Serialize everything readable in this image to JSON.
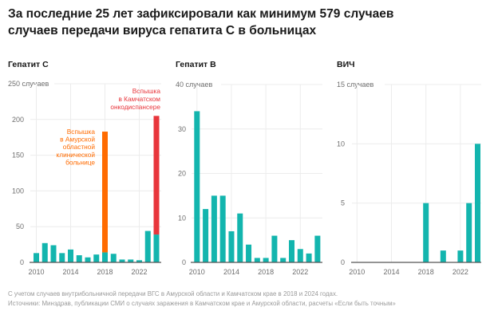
{
  "title_lines": [
    "За последние 25 лет зафиксировали как минимум 579 случаев",
    "случаев передачи вируса гепатита С в больницах"
  ],
  "colors": {
    "base": "#13B5AE",
    "outbreak_amur": "#FF6B00",
    "outbreak_kamchatka": "#E8363C",
    "grid": "#ECECEC",
    "axis": "#555555"
  },
  "footnotes": {
    "note": "С учетом случаев внутрибольничной передачи ВГС в Амурской области и Камчатском крае в 2018 и 2024 годах.",
    "sources": "Источники: Минздрав, публикации СМИ о случаях заражения в Камчатском крае и Амурской области, расчеты «Если быть точным»"
  },
  "chart_data": [
    {
      "type": "bar",
      "stacked": true,
      "title": "Гепатит С",
      "xlabel": "",
      "ylabel": "случаев",
      "categories": [
        "2010",
        "2011",
        "2012",
        "2013",
        "2014",
        "2015",
        "2016",
        "2017",
        "2018",
        "2019",
        "2020",
        "2021",
        "2022",
        "2023",
        "2024"
      ],
      "xtick_labels": [
        "2010",
        "2014",
        "2018",
        "2022"
      ],
      "ylim": [
        0,
        250
      ],
      "yticks": [
        0,
        50,
        100,
        150,
        200,
        250
      ],
      "ytick_labels": [
        "0",
        "50",
        "100",
        "150",
        "200",
        "250 случаев"
      ],
      "grid": true,
      "legend": "none",
      "series": [
        {
          "key": "base",
          "name": "Случаи",
          "color": "#13B5AE",
          "values": [
            13,
            27,
            24,
            13,
            18,
            10,
            7,
            11,
            14,
            12,
            4,
            4,
            3,
            44,
            39
          ]
        },
        {
          "key": "amur",
          "name": "Вспышка в Амурской областной клинической больнице",
          "color": "#FF6B00",
          "values": [
            0,
            0,
            0,
            0,
            0,
            0,
            0,
            0,
            169,
            0,
            0,
            0,
            0,
            0,
            0
          ]
        },
        {
          "key": "kamchatka",
          "name": "Вспышка в Камчатском онкодиспансере",
          "color": "#E8363C",
          "values": [
            0,
            0,
            0,
            0,
            0,
            0,
            0,
            0,
            0,
            0,
            0,
            0,
            0,
            0,
            166
          ]
        }
      ],
      "annotations": [
        {
          "category": "2018",
          "color": "#FF6B00",
          "lines": [
            "Вспышка",
            "в Амурской",
            "областной",
            "клинической",
            "больнице"
          ]
        },
        {
          "category": "2024",
          "color": "#E8363C",
          "lines": [
            "Вспышка",
            "в Камчатском",
            "онкодиспансере"
          ]
        }
      ]
    },
    {
      "type": "bar",
      "stacked": false,
      "title": "Гепатит В",
      "xlabel": "",
      "ylabel": "случаев",
      "categories": [
        "2010",
        "2011",
        "2012",
        "2013",
        "2014",
        "2015",
        "2016",
        "2017",
        "2018",
        "2019",
        "2020",
        "2021",
        "2022",
        "2023",
        "2024"
      ],
      "xtick_labels": [
        "2010",
        "2014",
        "2018",
        "2022"
      ],
      "ylim": [
        0,
        40
      ],
      "yticks": [
        0,
        10,
        20,
        30,
        40
      ],
      "ytick_labels": [
        "0",
        "10",
        "20",
        "30",
        "40 случаев"
      ],
      "grid": true,
      "legend": "none",
      "series": [
        {
          "key": "base",
          "name": "Случаи",
          "color": "#13B5AE",
          "values": [
            34,
            12,
            15,
            15,
            7,
            11,
            4,
            1,
            1,
            6,
            1,
            5,
            3,
            2,
            6
          ]
        }
      ],
      "annotations": []
    },
    {
      "type": "bar",
      "stacked": false,
      "title": "ВИЧ",
      "xlabel": "",
      "ylabel": "случаев",
      "categories": [
        "2010",
        "2011",
        "2012",
        "2013",
        "2014",
        "2015",
        "2016",
        "2017",
        "2018",
        "2019",
        "2020",
        "2021",
        "2022",
        "2023",
        "2024"
      ],
      "xtick_labels": [
        "2010",
        "2014",
        "2018",
        "2022"
      ],
      "ylim": [
        0,
        15
      ],
      "yticks": [
        0,
        5,
        10,
        15
      ],
      "ytick_labels": [
        "0",
        "5",
        "10",
        "15 случаев"
      ],
      "grid": true,
      "legend": "none",
      "series": [
        {
          "key": "base",
          "name": "Случаи",
          "color": "#13B5AE",
          "values": [
            0,
            0,
            0,
            0,
            0,
            0,
            0,
            0,
            5,
            0,
            1,
            0,
            1,
            5,
            10
          ]
        }
      ],
      "annotations": []
    }
  ]
}
